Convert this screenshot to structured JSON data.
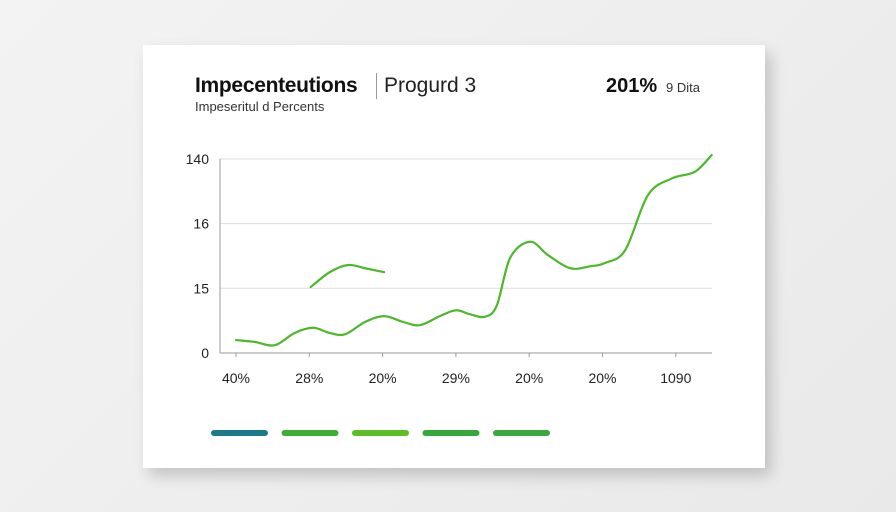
{
  "header": {
    "title": "Impecenteutions",
    "title_secondary": "Progurd 3",
    "subtitle": "Impeseritul d Percents",
    "stat_value": "201%",
    "stat_label": "9 Dita"
  },
  "chart_data": {
    "type": "line",
    "x_tick_labels": [
      "40%",
      "28%",
      "20%",
      "29%",
      "20%",
      "20%",
      "1090"
    ],
    "y_tick_labels": [
      "0",
      "15",
      "16",
      "140"
    ],
    "note_units": "x in category-index units (0-6), y in tick-position units (0-3, evenly spaced printed ticks)",
    "grid": true,
    "line_color": "#4cb82a",
    "series": [
      {
        "points": [
          [
            0,
            0.2
          ],
          [
            0.26,
            0.17
          ],
          [
            0.53,
            0.12
          ],
          [
            0.8,
            0.31
          ],
          [
            1.05,
            0.39
          ],
          [
            1.28,
            0.31
          ],
          [
            1.49,
            0.29
          ],
          [
            1.76,
            0.48
          ],
          [
            2.02,
            0.57
          ],
          [
            2.28,
            0.48
          ],
          [
            2.51,
            0.43
          ],
          [
            2.78,
            0.57
          ],
          [
            3.0,
            0.66
          ],
          [
            3.19,
            0.6
          ],
          [
            3.4,
            0.56
          ],
          [
            3.56,
            0.74
          ],
          [
            3.74,
            1.47
          ],
          [
            4.01,
            1.72
          ],
          [
            4.26,
            1.51
          ],
          [
            4.56,
            1.31
          ],
          [
            4.83,
            1.34
          ],
          [
            5.03,
            1.39
          ],
          [
            5.31,
            1.59
          ],
          [
            5.62,
            2.44
          ],
          [
            5.95,
            2.7
          ],
          [
            6.26,
            2.8
          ],
          [
            6.49,
            3.06
          ]
        ]
      },
      {
        "points": [
          [
            1.02,
            1.02
          ],
          [
            1.28,
            1.25
          ],
          [
            1.53,
            1.36
          ],
          [
            1.76,
            1.31
          ],
          [
            2.02,
            1.25
          ]
        ]
      }
    ],
    "legend_colors": [
      "#1d7a8c",
      "#3fae35",
      "#5cbf26",
      "#34a83a",
      "#3aa83e"
    ]
  }
}
